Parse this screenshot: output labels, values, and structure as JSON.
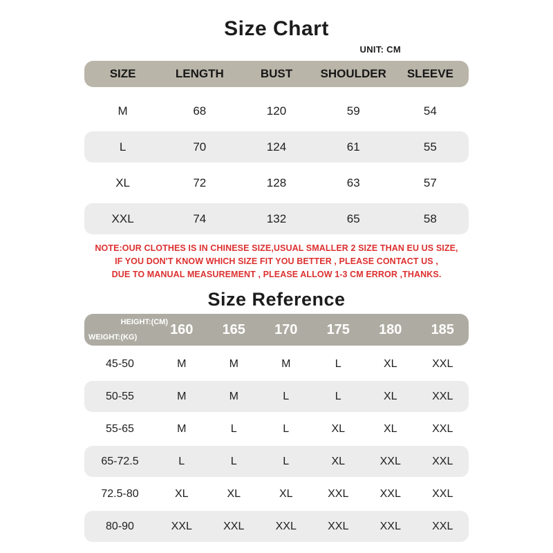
{
  "colors": {
    "table1_header_band": "#bab5a9",
    "table2_header_band": "#aeaca2",
    "alt_row_background": "#ececec",
    "note_red": "#dd2f2f",
    "table2_header_text": "#ffffff",
    "body_text": "#1c1c1c"
  },
  "size_chart": {
    "title": "Size Chart",
    "unit_label": "UNIT: CM",
    "columns": [
      "SIZE",
      "LENGTH",
      "BUST",
      "SHOULDER",
      "SLEEVE"
    ],
    "rows": [
      {
        "size": "M",
        "length": "68",
        "bust": "120",
        "shoulder": "59",
        "sleeve": "54"
      },
      {
        "size": "L",
        "length": "70",
        "bust": "124",
        "shoulder": "61",
        "sleeve": "55"
      },
      {
        "size": "XL",
        "length": "72",
        "bust": "128",
        "shoulder": "63",
        "sleeve": "57"
      },
      {
        "size": "XXL",
        "length": "74",
        "bust": "132",
        "shoulder": "65",
        "sleeve": "58"
      }
    ]
  },
  "note": {
    "lines": [
      "NOTE:OUR CLOTHES IS IN CHINESE SIZE,USUAL SMALLER 2 SIZE THAN EU US SIZE,",
      "IF YOU DON'T KNOW WHICH SIZE FIT YOU BETTER , PLEASE CONTACT US ,",
      "DUE TO MANUAL MEASUREMENT , PLEASE ALLOW 1-3 CM ERROR ,THANKS."
    ]
  },
  "size_reference": {
    "title": "Size Reference",
    "corner_top": "HEIGHT:(CM)",
    "corner_bottom": "WEIGHT:(KG)",
    "height_columns": [
      "160",
      "165",
      "170",
      "175",
      "180",
      "185"
    ],
    "rows": [
      {
        "weight": "45-50",
        "sizes": [
          "M",
          "M",
          "M",
          "L",
          "XL",
          "XXL"
        ]
      },
      {
        "weight": "50-55",
        "sizes": [
          "M",
          "M",
          "L",
          "L",
          "XL",
          "XXL"
        ]
      },
      {
        "weight": "55-65",
        "sizes": [
          "M",
          "L",
          "L",
          "XL",
          "XL",
          "XXL"
        ]
      },
      {
        "weight": "65-72.5",
        "sizes": [
          "L",
          "L",
          "L",
          "XL",
          "XXL",
          "XXL"
        ]
      },
      {
        "weight": "72.5-80",
        "sizes": [
          "XL",
          "XL",
          "XL",
          "XXL",
          "XXL",
          "XXL"
        ]
      },
      {
        "weight": "80-90",
        "sizes": [
          "XXL",
          "XXL",
          "XXL",
          "XXL",
          "XXL",
          "XXL"
        ]
      }
    ]
  }
}
